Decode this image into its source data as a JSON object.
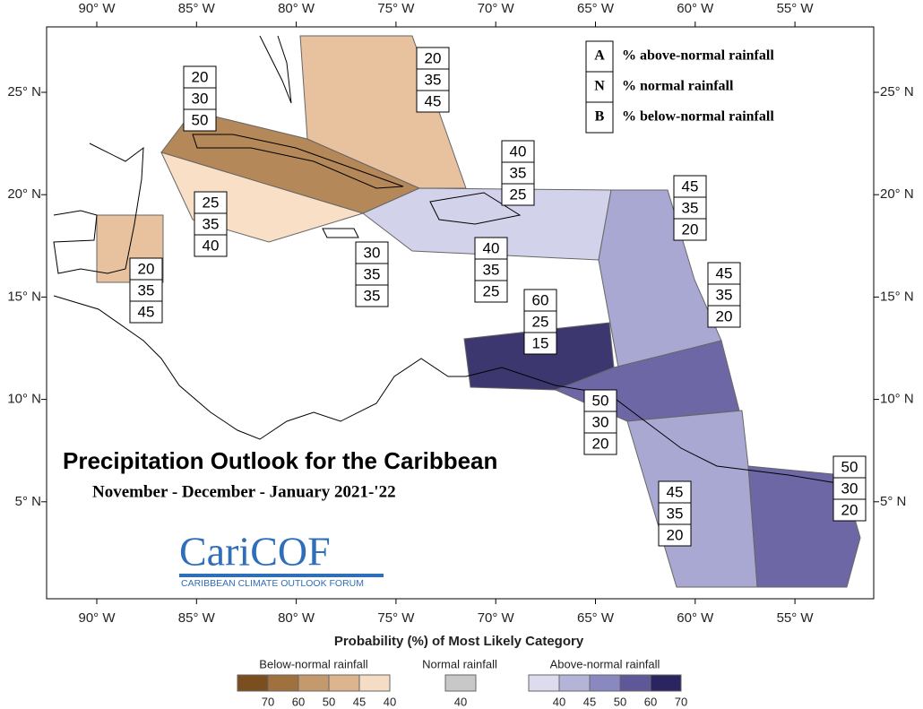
{
  "map": {
    "lon_labels": [
      "90° W",
      "85° W",
      "80° W",
      "75° W",
      "70° W",
      "65° W",
      "60° W",
      "55° W"
    ],
    "lat_labels": [
      "25° N",
      "20° N",
      "15° N",
      "10° N",
      "5° N"
    ],
    "key": [
      {
        "letter": "A",
        "text": "% above-normal rainfall"
      },
      {
        "letter": "N",
        "text": "% normal rainfall"
      },
      {
        "letter": "B",
        "text": "% below-normal rainfall"
      }
    ],
    "title": "Precipitation Outlook for the Caribbean",
    "subtitle": "November - December - January  2021-'22",
    "logo": {
      "name": "CariCOF",
      "full_name": "CARIBBEAN CLIMATE OUTLOOK FORUM"
    },
    "regions": [
      {
        "values": [
          20,
          30,
          50
        ]
      },
      {
        "values": [
          25,
          35,
          40
        ]
      },
      {
        "values": [
          20,
          35,
          45
        ]
      },
      {
        "values": [
          20,
          35,
          45
        ]
      },
      {
        "values": [
          30,
          35,
          35
        ]
      },
      {
        "values": [
          40,
          35,
          25
        ]
      },
      {
        "values": [
          40,
          35,
          25
        ]
      },
      {
        "values": [
          45,
          35,
          20
        ]
      },
      {
        "values": [
          45,
          35,
          20
        ]
      },
      {
        "values": [
          60,
          25,
          15
        ]
      },
      {
        "values": [
          50,
          30,
          20
        ]
      },
      {
        "values": [
          45,
          35,
          20
        ]
      },
      {
        "values": [
          50,
          30,
          20
        ]
      }
    ],
    "colorbar": {
      "title": "Probability (%) of Most Likely Category",
      "below": {
        "label": "Below-normal rainfall",
        "ticks": [
          70,
          60,
          50,
          45,
          40
        ]
      },
      "normal": {
        "label": "Normal rainfall",
        "ticks": [
          40
        ]
      },
      "above": {
        "label": "Above-normal rainfall",
        "ticks": [
          40,
          45,
          50,
          60,
          70
        ]
      }
    }
  }
}
